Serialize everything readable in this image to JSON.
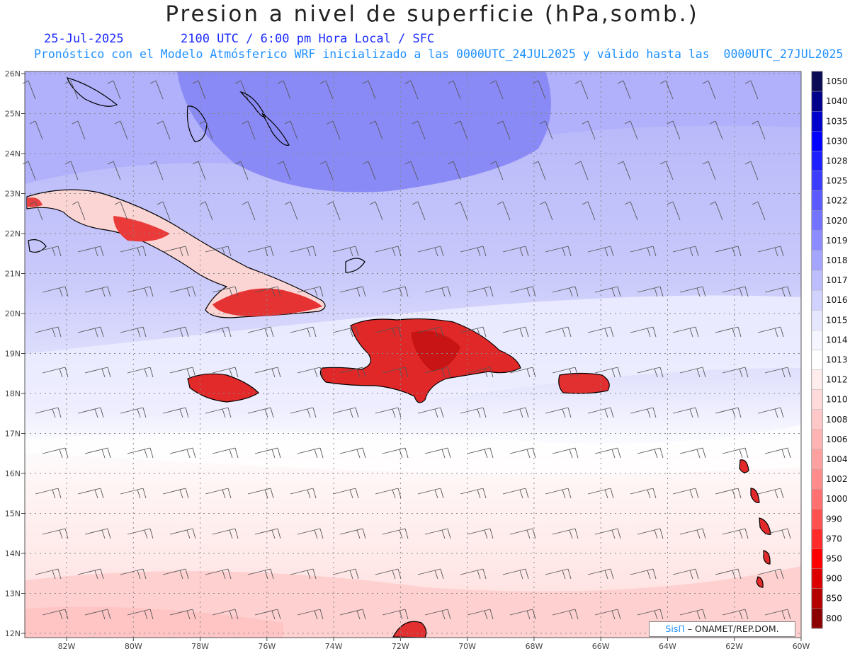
{
  "header": {
    "title": "Presion a nivel de superficie (hPa,somb.)",
    "date": "25-Jul-2025",
    "time_info": "2100 UTC / 6:00 pm Hora Local / SFC",
    "forecast_info": "Pronóstico con el Modelo Atmósferico WRF inicializado a las 0000UTC_24JUL2025 y válido hasta las  0000UTC_27JUL2025"
  },
  "axes": {
    "lat_labels": [
      "26N",
      "25N",
      "24N",
      "23N",
      "22N",
      "21N",
      "20N",
      "19N",
      "18N",
      "17N",
      "16N",
      "15N",
      "14N",
      "13N",
      "12N"
    ],
    "lon_labels": [
      "82W",
      "80W",
      "78W",
      "76W",
      "74W",
      "72W",
      "70W",
      "68W",
      "66W",
      "64W",
      "62W",
      "60W"
    ]
  },
  "colorbar": {
    "labels": [
      "1050",
      "1040",
      "1035",
      "1030",
      "1028",
      "1025",
      "1022",
      "1020",
      "1019",
      "1018",
      "1017",
      "1016",
      "1015",
      "1014",
      "1013",
      "1012",
      "1010",
      "1008",
      "1006",
      "1004",
      "1002",
      "1000",
      "990",
      "970",
      "950",
      "900",
      "850",
      "800"
    ],
    "colors": [
      "#0b0b55",
      "#00008b",
      "#0000cd",
      "#0000ff",
      "#1e1eff",
      "#3c3cff",
      "#5a5aff",
      "#7373ff",
      "#8c8cff",
      "#a5a5ff",
      "#bebeff",
      "#d2d2ff",
      "#e6e6ff",
      "#f5f5ff",
      "#ffffff",
      "#ffecec",
      "#ffdada",
      "#ffc8c8",
      "#ffb4b4",
      "#ffa0a0",
      "#ff8c8c",
      "#ff7070",
      "#ff5050",
      "#ff2a2a",
      "#ff0000",
      "#dd0000",
      "#b50000",
      "#8b0000"
    ]
  },
  "credit": {
    "brand": "SisΠ",
    "text": "– ONAMET/REP.DOM."
  }
}
